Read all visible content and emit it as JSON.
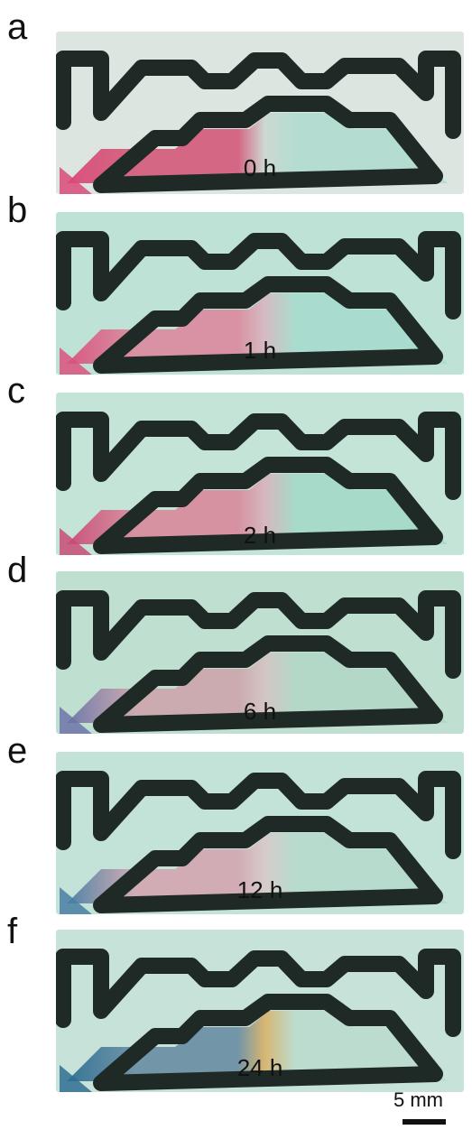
{
  "figure": {
    "panels": [
      {
        "letter": "a",
        "time": "0 h",
        "bg": "#dde5e0",
        "left_color": "#d4607e",
        "mid_color": "#ccd8d2",
        "right_color": "#b2dccf",
        "corner": "#d94a78"
      },
      {
        "letter": "b",
        "time": "1 h",
        "bg": "#bfe2d6",
        "left_color": "#d98ea0",
        "mid_color": "#d7b9c2",
        "right_color": "#a8dccd",
        "corner": "#d9527e"
      },
      {
        "letter": "c",
        "time": "2 h",
        "bg": "#c4e4d8",
        "left_color": "#d88e9e",
        "mid_color": "#d7b5bd",
        "right_color": "#a6d9c8",
        "corner": "#c84c77"
      },
      {
        "letter": "d",
        "time": "6 h",
        "bg": "#bfe0d0",
        "left_color": "#cca8ad",
        "mid_color": "#d4c4c2",
        "right_color": "#b3d8c8",
        "corner": "#6c74a8"
      },
      {
        "letter": "e",
        "time": "12 h",
        "bg": "#c3e3d8",
        "left_color": "#d2a9b3",
        "mid_color": "#d8cac9",
        "right_color": "#b6dbcd",
        "corner": "#4a7fa3"
      },
      {
        "letter": "f",
        "time": "24 h",
        "bg": "#c7e2d8",
        "left_color": "#6e91a6",
        "mid_color": "#d8b46d",
        "right_color": "#bbdccf",
        "corner": "#2f6f93"
      }
    ],
    "scale_bar_label": "5 mm"
  }
}
